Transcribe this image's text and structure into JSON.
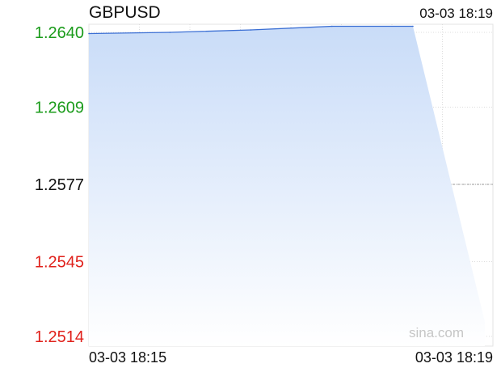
{
  "header": {
    "symbol": "GBPUSD",
    "timestamp": "03-03 18:19"
  },
  "watermark": "sina.com",
  "chart_data": {
    "type": "area",
    "title": "GBPUSD",
    "x_ticks": [
      "03-03 18:15",
      "03-03 18:19"
    ],
    "y_ticks": [
      {
        "label": "1.2640",
        "value": 1.264,
        "color": "#1a9b1a"
      },
      {
        "label": "1.2609",
        "value": 1.2609,
        "color": "#1a9b1a"
      },
      {
        "label": "1.2577",
        "value": 1.2577,
        "color": "#111111"
      },
      {
        "label": "1.2545",
        "value": 1.2545,
        "color": "#e0211b"
      },
      {
        "label": "1.2514",
        "value": 1.2514,
        "color": "#e0211b"
      }
    ],
    "ylim": [
      1.2514,
      1.264
    ],
    "reference_price": 1.2577,
    "series": [
      {
        "points": [
          {
            "x": "03-03 18:15",
            "y": 1.26395
          },
          {
            "x": "03-03 18:16",
            "y": 1.264
          },
          {
            "x": "03-03 18:17",
            "y": 1.2641
          },
          {
            "x": "03-03 18:18",
            "y": 1.26425
          },
          {
            "x": "03-03 18:19",
            "y": 1.26425
          }
        ],
        "line_color": "#3b6fd4",
        "fill_color_top": "#c9dcf8",
        "fill_color_bottom": "#ffffff"
      }
    ],
    "grid": true,
    "legend": "none"
  }
}
